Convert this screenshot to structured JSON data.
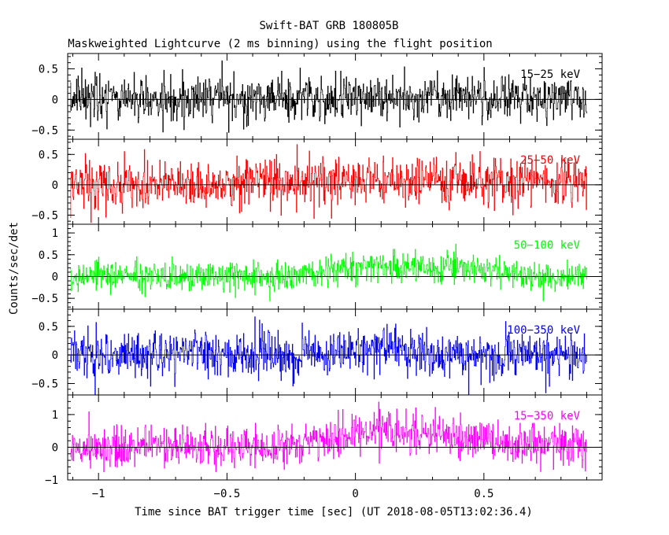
{
  "title": "Swift-BAT GRB 180805B",
  "subtitle": "Maskweighted Lightcurve (2 ms binning) using the flight position",
  "ylabel": "Counts/sec/det",
  "xlabel": "Time since BAT trigger time [sec] (UT 2018-08-05T13:02:36.4)",
  "chart_data": {
    "type": "line",
    "title": "Swift-BAT GRB 180805B",
    "subtitle": "Maskweighted Lightcurve (2 ms binning) using the flight position",
    "xlabel": "Time since BAT trigger time [sec] (UT 2018-08-05T13:02:36.4)",
    "ylabel": "Counts/sec/det",
    "xlim": [
      -1.12,
      0.96
    ],
    "xticks": [
      -1,
      -0.5,
      0,
      0.5
    ],
    "xtick_labels": [
      "−1",
      "−0.5",
      "0",
      "0.5"
    ],
    "data_x_range": [
      -1.11,
      0.9
    ],
    "bin_width_s": 0.002,
    "panels": [
      {
        "name": "15−25 keV",
        "color": "#000000",
        "ylim": [
          -0.65,
          0.75
        ],
        "yticks": [
          -0.5,
          0,
          0.5
        ],
        "ytick_labels": [
          "−0.5",
          "0",
          "0.5"
        ],
        "noise_sigma": 0.18,
        "burst": [
          {
            "t": 0.1,
            "w": 0.6,
            "amp": 0.04
          }
        ]
      },
      {
        "name": "25−50 keV",
        "color": "#ff0000",
        "ylim": [
          -0.65,
          0.75
        ],
        "yticks": [
          -0.5,
          0,
          0.5
        ],
        "ytick_labels": [
          "−0.5",
          "0",
          "0.5"
        ],
        "noise_sigma": 0.2,
        "burst": [
          {
            "t": 0.15,
            "w": 0.5,
            "amp": 0.08
          }
        ]
      },
      {
        "name": "50−100 keV",
        "color": "#00ff00",
        "ylim": [
          -0.75,
          1.2
        ],
        "yticks": [
          -0.5,
          0,
          0.5,
          1
        ],
        "ytick_labels": [
          "−0.5",
          "0",
          "0.5",
          "1"
        ],
        "noise_sigma": 0.17,
        "burst": [
          {
            "t": 0.12,
            "w": 0.25,
            "amp": 0.25
          },
          {
            "t": 0.5,
            "w": 0.2,
            "amp": 0.12
          }
        ]
      },
      {
        "name": "100−350 keV",
        "color": "#0000ff",
        "ylim": [
          -0.7,
          0.8
        ],
        "yticks": [
          -0.5,
          0,
          0.5
        ],
        "ytick_labels": [
          "−0.5",
          "0",
          "0.5"
        ],
        "noise_sigma": 0.2,
        "burst": [
          {
            "t": 0.12,
            "w": 0.2,
            "amp": 0.12
          }
        ]
      },
      {
        "name": "15−350 keV",
        "color": "#ff00ff",
        "ylim": [
          -1.0,
          1.6
        ],
        "yticks": [
          -1,
          0,
          1
        ],
        "ytick_labels": [
          "−1",
          "0",
          "1"
        ],
        "noise_sigma": 0.32,
        "burst": [
          {
            "t": 0.15,
            "w": 0.28,
            "amp": 0.45
          },
          {
            "t": 0.5,
            "w": 0.2,
            "amp": 0.15
          }
        ]
      }
    ]
  }
}
